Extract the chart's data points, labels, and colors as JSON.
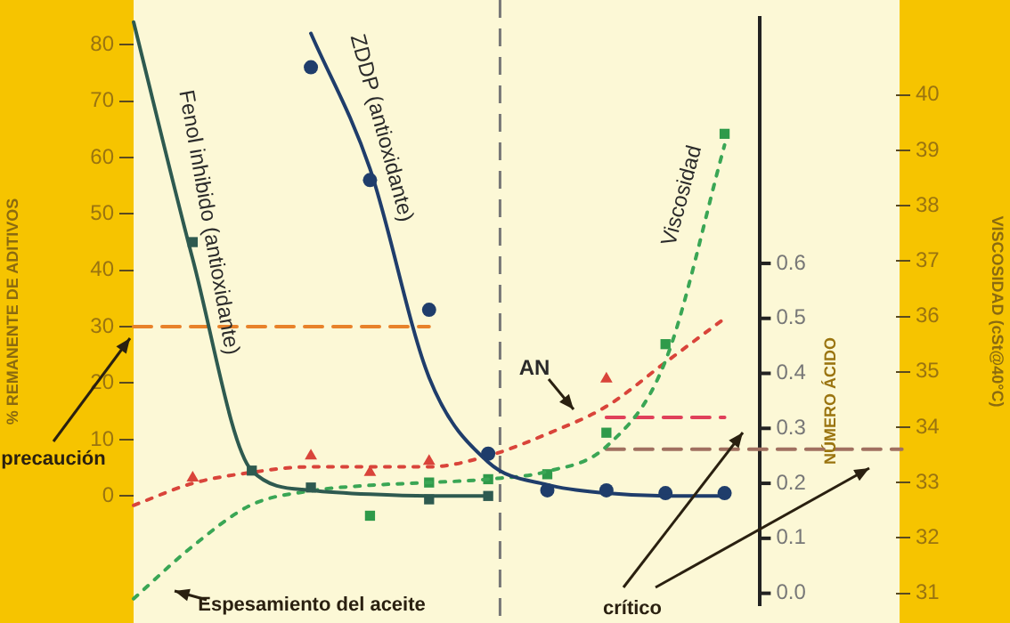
{
  "chart_data": {
    "type": "line",
    "ylabel": "% REMANENTE DE ADITIVOS",
    "y2label": "NÚMERO ÁCIDO",
    "y3label": "VISCOSIDAD (cSt@40°C)",
    "categories": [
      null,
      null,
      null,
      null,
      null,
      null,
      null,
      null,
      null,
      null,
      null,
      null,
      null,
      null
    ],
    "ylim": [
      -19.3,
      84.7
    ],
    "yticks": [
      0,
      10,
      20,
      30,
      40,
      50,
      60,
      70,
      80
    ],
    "y2lim": [
      -0.021,
      1.046
    ],
    "y2ticks": [
      {
        "value": 0,
        "label": "0.0"
      },
      {
        "value": 0.1,
        "label": "0.1"
      },
      {
        "value": 0.2,
        "label": "0.2"
      },
      {
        "value": 0.3,
        "label": "0.3"
      },
      {
        "value": 0.4,
        "label": "0.4"
      },
      {
        "value": 0.5,
        "label": "0.5"
      },
      {
        "value": 0.6,
        "label": "0.6"
      }
    ],
    "y3lim": [
      30.79,
      41.39
    ],
    "y3ticks": [
      31,
      32,
      33,
      34,
      35,
      36,
      37,
      38,
      39,
      40
    ],
    "grid": false,
    "legend": false,
    "series": [
      {
        "name": "Fenol inhibido (antioxidante)",
        "color": "#2e5a50",
        "marker": "none",
        "line_style": "solid",
        "values": [
          84,
          42,
          4.5,
          1,
          0.3,
          0,
          0,
          null,
          null,
          null,
          null,
          null,
          null,
          null
        ]
      },
      {
        "type": "scatter",
        "color": "#2e5a50",
        "marker": "square",
        "values": [
          null,
          45,
          4.5,
          1.5,
          null,
          -0.6,
          0,
          null,
          null,
          null,
          null,
          null,
          null,
          null
        ]
      },
      {
        "name": "ZDDP (antioxidante)",
        "color": "#1f3d6b",
        "marker": "none",
        "line_style": "solid",
        "values": [
          null,
          null,
          null,
          82,
          58,
          21,
          6,
          2,
          0.5,
          0,
          0,
          null,
          null,
          null
        ]
      },
      {
        "type": "scatter",
        "color": "#1f3d6b",
        "marker": "circle",
        "values": [
          null,
          null,
          null,
          76,
          56,
          33,
          7.5,
          1,
          1,
          0.5,
          0.5,
          null,
          null,
          null
        ]
      },
      {
        "name": "Viscosidad",
        "type": "line",
        "axis": "y3",
        "color": "#3aa655",
        "marker": "none",
        "line_style": "dotted",
        "values": [
          30.9,
          31.85,
          32.6,
          32.85,
          32.95,
          33.0,
          33.06,
          33.2,
          33.65,
          35.2,
          39.1,
          null,
          null,
          null
        ]
      },
      {
        "type": "scatter",
        "axis": "y3",
        "color": "#2f9a4a",
        "marker": "square",
        "values": [
          null,
          null,
          null,
          null,
          32.4,
          33.0,
          33.06,
          33.15,
          33.9,
          35.5,
          39.3,
          null,
          null,
          null
        ]
      },
      {
        "name": "AN",
        "type": "line",
        "axis": "y2",
        "color": "#d9443a",
        "marker": "none",
        "line_style": "dotted",
        "values": [
          0.16,
          0.2,
          0.22,
          0.23,
          0.23,
          0.23,
          0.25,
          0.29,
          0.34,
          0.42,
          0.5,
          null,
          null,
          null
        ]
      },
      {
        "type": "scatter",
        "axis": "y2",
        "color": "#d9443a",
        "marker": "triangle",
        "values": [
          null,
          0.21,
          null,
          0.25,
          0.22,
          0.24,
          null,
          null,
          0.39,
          null,
          null,
          null,
          null,
          null
        ]
      },
      {
        "type": "line",
        "color": "#e8822a",
        "marker": "none",
        "line_style": "dashed",
        "values": [
          30,
          30,
          30,
          30,
          30,
          30,
          null,
          null,
          null,
          null,
          null,
          null,
          null,
          null
        ]
      },
      {
        "type": "line",
        "axis": "y2",
        "color": "#e0405a",
        "marker": "none",
        "line_style": "dashed",
        "values": [
          null,
          null,
          null,
          null,
          null,
          null,
          null,
          null,
          0.32,
          0.32,
          0.32,
          null,
          null,
          null
        ]
      },
      {
        "type": "line",
        "axis": "y3",
        "color": "#a07060",
        "marker": "none",
        "line_style": "dashed",
        "values": [
          null,
          null,
          null,
          null,
          null,
          null,
          null,
          null,
          33.6,
          33.6,
          33.6,
          33.6,
          33.6,
          33.6
        ]
      }
    ],
    "annotations": [
      "precaución",
      "Espesamiento del aceite",
      "crítico"
    ]
  }
}
